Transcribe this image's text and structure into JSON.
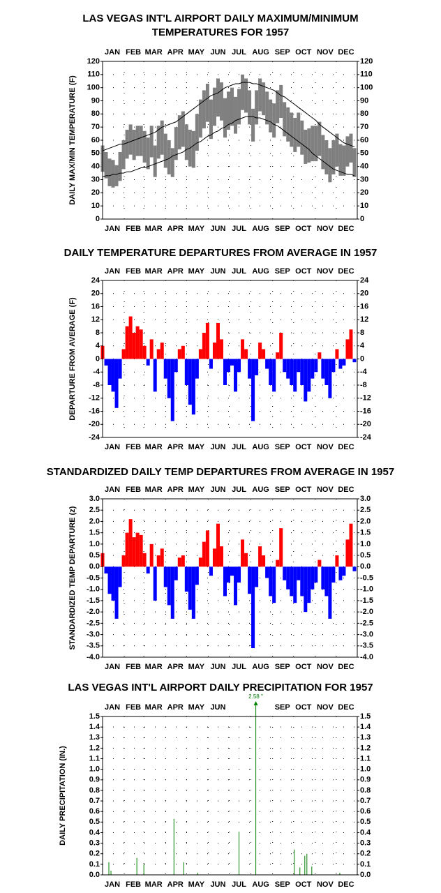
{
  "chart_data": [
    {
      "type": "band",
      "title": [
        "LAS VEGAS INT'L AIRPORT DAILY MAXIMUM/MINIMUM",
        "TEMPERATURES FOR 1957"
      ],
      "y_label": "DAILY MAX/MIN TEMPERATURE (F)",
      "months": [
        "JAN",
        "FEB",
        "MAR",
        "APR",
        "MAY",
        "JUN",
        "JUL",
        "AUG",
        "SEP",
        "OCT",
        "NOV",
        "DEC"
      ],
      "xlim": [
        1,
        365
      ],
      "x": [
        1,
        6,
        11,
        16,
        21,
        26,
        31,
        36,
        41,
        46,
        51,
        56,
        61,
        66,
        71,
        76,
        81,
        86,
        91,
        96,
        101,
        106,
        111,
        116,
        121,
        126,
        131,
        136,
        141,
        146,
        151,
        156,
        161,
        166,
        171,
        176,
        181,
        186,
        191,
        196,
        201,
        206,
        211,
        216,
        221,
        226,
        231,
        236,
        241,
        246,
        251,
        256,
        261,
        266,
        271,
        276,
        281,
        286,
        291,
        296,
        301,
        306,
        311,
        316,
        321,
        326,
        331,
        336,
        341,
        346,
        351,
        356,
        361
      ],
      "max": [
        56,
        51,
        46,
        45,
        41,
        51,
        60,
        68,
        72,
        68,
        71,
        71,
        67,
        62,
        71,
        56,
        71,
        75,
        65,
        60,
        54,
        70,
        79,
        82,
        72,
        68,
        67,
        80,
        91,
        98,
        103,
        91,
        100,
        107,
        104,
        92,
        97,
        100,
        93,
        99,
        110,
        107,
        98,
        84,
        98,
        107,
        104,
        97,
        91,
        88,
        98,
        102,
        89,
        85,
        81,
        77,
        81,
        75,
        68,
        69,
        71,
        71,
        74,
        64,
        60,
        54,
        60,
        65,
        57,
        56,
        63,
        65,
        54
      ],
      "min": [
        36,
        31,
        25,
        24,
        25,
        29,
        38,
        46,
        49,
        45,
        48,
        48,
        43,
        38,
        47,
        32,
        46,
        49,
        39,
        34,
        32,
        45,
        53,
        55,
        45,
        40,
        39,
        52,
        62,
        69,
        74,
        61,
        71,
        78,
        75,
        62,
        68,
        71,
        65,
        72,
        83,
        81,
        72,
        59,
        72,
        82,
        79,
        72,
        66,
        62,
        73,
        77,
        63,
        59,
        55,
        51,
        55,
        49,
        42,
        43,
        44,
        44,
        48,
        38,
        34,
        28,
        34,
        40,
        33,
        33,
        40,
        43,
        32
      ],
      "normal_max": [
        52,
        53,
        54,
        55,
        56,
        57,
        57,
        58,
        59,
        60,
        61,
        62,
        63,
        64,
        65,
        66,
        68,
        70,
        71,
        72,
        73,
        74,
        76,
        78,
        80,
        82,
        84,
        86,
        88,
        90,
        92,
        94,
        95,
        96,
        98,
        100,
        101,
        102,
        103,
        103,
        104,
        104,
        104,
        103,
        103,
        102,
        101,
        100,
        99,
        98,
        96,
        94,
        93,
        91,
        89,
        87,
        85,
        83,
        81,
        79,
        77,
        75,
        72,
        70,
        68,
        66,
        64,
        62,
        60,
        58,
        57,
        56,
        55
      ],
      "normal_min": [
        32,
        33,
        33,
        34,
        34,
        35,
        35,
        36,
        36,
        37,
        38,
        39,
        39,
        40,
        41,
        42,
        43,
        44,
        45,
        46,
        48,
        49,
        50,
        51,
        53,
        54,
        56,
        58,
        59,
        61,
        63,
        64,
        66,
        67,
        69,
        70,
        72,
        73,
        75,
        76,
        77,
        78,
        78,
        78,
        77,
        77,
        76,
        75,
        74,
        72,
        71,
        69,
        67,
        65,
        63,
        61,
        59,
        57,
        55,
        53,
        50,
        48,
        46,
        44,
        42,
        40,
        38,
        37,
        36,
        35,
        34,
        34,
        33
      ],
      "band_color": "#808080",
      "normal_color": "#000000",
      "ylim": [
        0,
        120
      ],
      "yticks": [
        0,
        10,
        20,
        30,
        40,
        50,
        60,
        70,
        80,
        90,
        100,
        110,
        120
      ],
      "grid": true
    },
    {
      "type": "diverging_bar",
      "title": "DAILY TEMPERATURE DEPARTURES FROM AVERAGE IN 1957",
      "y_label": "DEPARTURE FROM AVERAGE (F)",
      "months": [
        "JAN",
        "FEB",
        "MAR",
        "APR",
        "MAY",
        "JUN",
        "JUL",
        "AUG",
        "SEP",
        "OCT",
        "NOV",
        "DEC"
      ],
      "xlim": [
        1,
        365
      ],
      "x": [
        1,
        6,
        11,
        16,
        21,
        26,
        31,
        36,
        41,
        46,
        51,
        56,
        61,
        66,
        71,
        76,
        81,
        86,
        91,
        96,
        101,
        106,
        111,
        116,
        121,
        126,
        131,
        136,
        141,
        146,
        151,
        156,
        161,
        166,
        171,
        176,
        181,
        186,
        191,
        196,
        201,
        206,
        211,
        216,
        221,
        226,
        231,
        236,
        241,
        246,
        251,
        256,
        261,
        266,
        271,
        276,
        281,
        286,
        291,
        296,
        301,
        306,
        311,
        316,
        321,
        326,
        331,
        336,
        341,
        346,
        351,
        356,
        361
      ],
      "values": [
        4,
        -2,
        -8,
        -10,
        -15,
        -6,
        3,
        10,
        13,
        8,
        10,
        9,
        4,
        -2,
        6,
        -10,
        3,
        5,
        -6,
        -12,
        -19,
        -4,
        3,
        4,
        -8,
        -14,
        -17,
        -6,
        3,
        8,
        11,
        -3,
        5,
        11,
        6,
        -8,
        -4,
        -2,
        -10,
        -4,
        6,
        3,
        -6,
        -19,
        -5,
        5,
        3,
        -3,
        -8,
        -10,
        2,
        8,
        -4,
        -6,
        -8,
        -10,
        -4,
        -8,
        -13,
        -10,
        -6,
        -4,
        2,
        -6,
        -8,
        -12,
        -4,
        3,
        -3,
        -2,
        6,
        9,
        -1
      ],
      "above_color": "#ff0000",
      "below_color": "#0000ff",
      "ylim": [
        -24,
        24
      ],
      "yticks": [
        -24,
        -20,
        -16,
        -12,
        -8,
        -4,
        0,
        4,
        8,
        12,
        16,
        20,
        24
      ],
      "grid": true
    },
    {
      "type": "diverging_bar",
      "title": "STANDARDIZED DAILY TEMP DEPARTURES FROM AVERAGE IN 1957",
      "y_label": "STANDARDIZED TEMP DEPARTURE (z)",
      "months": [
        "JAN",
        "FEB",
        "MAR",
        "APR",
        "MAY",
        "JUN",
        "JUL",
        "AUG",
        "SEP",
        "OCT",
        "NOV",
        "DEC"
      ],
      "xlim": [
        1,
        365
      ],
      "x": [
        1,
        6,
        11,
        16,
        21,
        26,
        31,
        36,
        41,
        46,
        51,
        56,
        61,
        66,
        71,
        76,
        81,
        86,
        91,
        96,
        101,
        106,
        111,
        116,
        121,
        126,
        131,
        136,
        141,
        146,
        151,
        156,
        161,
        166,
        171,
        176,
        181,
        186,
        191,
        196,
        201,
        206,
        211,
        216,
        221,
        226,
        231,
        236,
        241,
        246,
        251,
        256,
        261,
        266,
        271,
        276,
        281,
        286,
        291,
        296,
        301,
        306,
        311,
        316,
        321,
        326,
        331,
        336,
        341,
        346,
        351,
        356,
        361
      ],
      "values": [
        0.6,
        -0.3,
        -1.2,
        -1.5,
        -2.3,
        -0.9,
        0.5,
        1.5,
        2.1,
        1.3,
        1.5,
        1.4,
        0.6,
        -0.3,
        1.0,
        -1.5,
        0.5,
        0.8,
        -0.9,
        -1.7,
        -2.3,
        -0.6,
        0.4,
        0.5,
        -1.1,
        -1.9,
        -2.3,
        -0.8,
        0.4,
        1.1,
        1.6,
        -0.4,
        0.8,
        1.9,
        0.9,
        -1.3,
        -0.7,
        -0.4,
        -1.7,
        -0.7,
        1.2,
        0.6,
        -1.2,
        -3.6,
        -0.9,
        0.9,
        0.5,
        -0.5,
        -1.3,
        -1.6,
        0.3,
        1.7,
        -0.6,
        -1.0,
        -1.3,
        -1.6,
        -0.6,
        -1.3,
        -2.0,
        -1.6,
        -1.0,
        -0.7,
        0.3,
        -1.0,
        -1.3,
        -2.3,
        -0.7,
        0.5,
        -0.6,
        -0.4,
        1.2,
        1.9,
        -0.2
      ],
      "above_color": "#ff0000",
      "below_color": "#0000ff",
      "ylim": [
        -4,
        3
      ],
      "yticks": [
        {
          "value": -4,
          "label": "-4.0"
        },
        -3.5,
        {
          "value": -3,
          "label": "-3.0"
        },
        -2.5,
        {
          "value": -2,
          "label": "-2.0"
        },
        -1.5,
        {
          "value": -1,
          "label": "-1.0"
        },
        -0.5,
        {
          "value": 0,
          "label": "0.0"
        },
        0.5,
        {
          "value": 1,
          "label": "1.0"
        },
        1.5,
        {
          "value": 2,
          "label": "2.0"
        },
        2.5,
        {
          "value": 3,
          "label": "3.0"
        }
      ],
      "grid": true
    },
    {
      "type": "bar",
      "title": "LAS VEGAS INT'L AIRPORT DAILY PRECIPITATION FOR 1957",
      "y_label": "DAILY PRECIPITATION (IN.)",
      "months": [
        "JAN",
        "FEB",
        "MAR",
        "APR",
        "MAY",
        "JUN",
        "JUL",
        "AUG",
        "SEP",
        "OCT",
        "NOV",
        "DEC"
      ],
      "xlim": [
        1,
        365
      ],
      "x": [
        10,
        13,
        50,
        60,
        103,
        117,
        137,
        196,
        220,
        275,
        283,
        290,
        293,
        300,
        340
      ],
      "values": [
        0.12,
        0.04,
        0.16,
        0.1,
        0.53,
        0.12,
        0.02,
        0.41,
        2.58,
        0.24,
        0.07,
        0.18,
        0.2,
        0.08,
        0.02
      ],
      "value_labels": [
        null,
        null,
        null,
        null,
        null,
        null,
        null,
        null,
        "2.58 ''",
        null,
        null,
        null,
        null,
        null,
        null
      ],
      "color": "#008000",
      "ylim": [
        0,
        1.5
      ],
      "yticks": [
        {
          "value": 0,
          "label": "0.0"
        },
        0.1,
        0.2,
        0.3,
        0.4,
        0.5,
        0.6,
        0.7,
        0.8,
        0.9,
        {
          "value": 1,
          "label": "1.0"
        },
        1.1,
        1.2,
        1.3,
        1.4,
        1.5
      ],
      "grid": true
    }
  ]
}
